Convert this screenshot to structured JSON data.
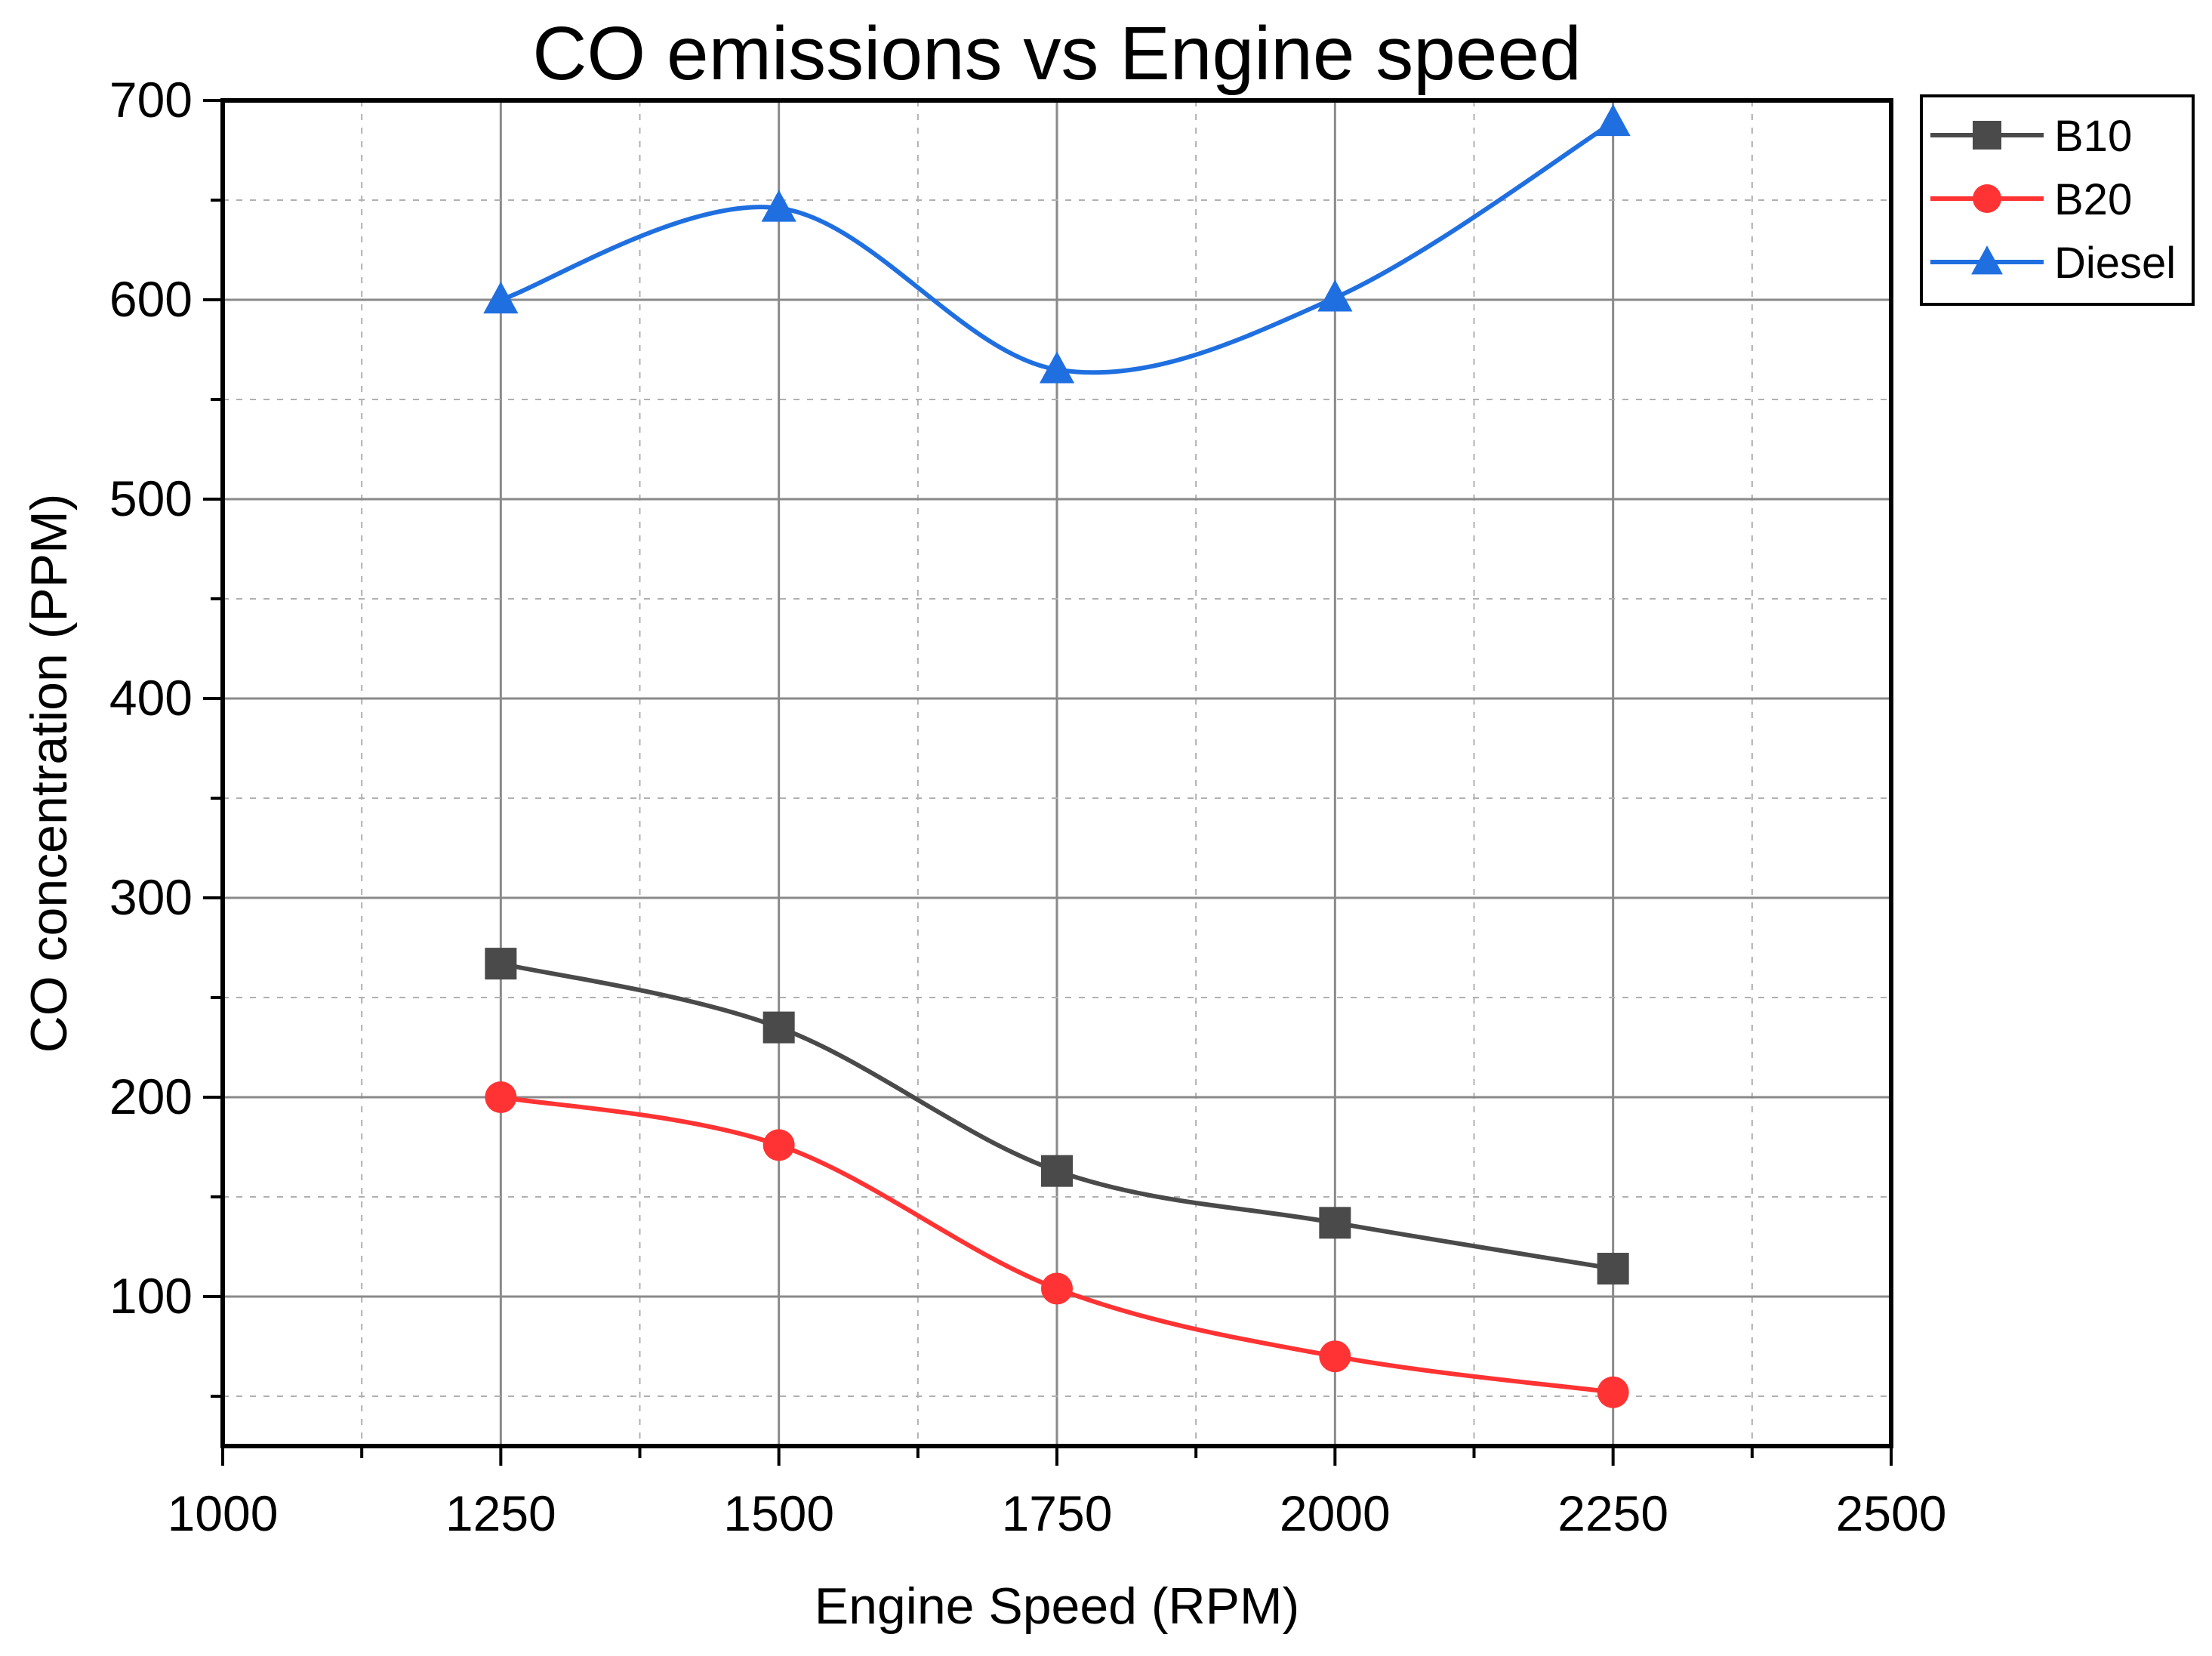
{
  "chart_data": {
    "type": "line",
    "title": "CO emissions vs Engine speed",
    "xlabel": "Engine Speed (RPM)",
    "ylabel": "CO concentration (PPM)",
    "xlim": [
      1000,
      2500
    ],
    "ylim": [
      25,
      700
    ],
    "x_ticks": [
      1000,
      1250,
      1500,
      1750,
      2000,
      2250,
      2500
    ],
    "y_ticks": [
      100,
      200,
      300,
      400,
      500,
      600,
      700
    ],
    "grid": true,
    "legend_position": "top-right",
    "x": [
      1250,
      1500,
      1750,
      2000,
      2250
    ],
    "series": [
      {
        "name": "B10",
        "values": [
          267,
          235,
          163,
          137,
          114
        ],
        "color": "#4a4a4a",
        "marker": "square"
      },
      {
        "name": "B20",
        "values": [
          200,
          176,
          104,
          70,
          52
        ],
        "color": "#ff3333",
        "marker": "circle"
      },
      {
        "name": "Diesel",
        "values": [
          600,
          646,
          565,
          601,
          689
        ],
        "color": "#1f6fe0",
        "marker": "triangle"
      }
    ]
  }
}
